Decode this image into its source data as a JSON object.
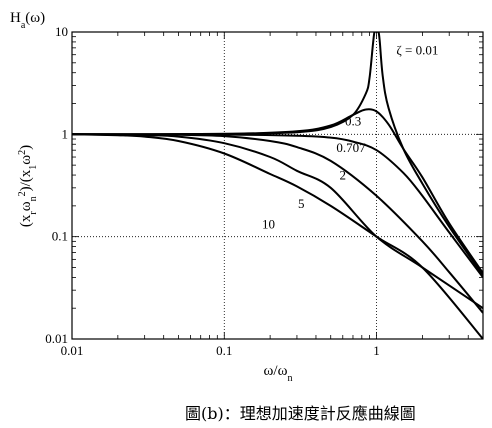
{
  "chart_data": {
    "type": "line",
    "title": "Ha(ω)",
    "xlabel": "ω/ωn",
    "ylabel": "(xrωn2)/(x1ω2)",
    "xscale": "log",
    "yscale": "log",
    "xlim": [
      0.01,
      5
    ],
    "ylim": [
      0.01,
      10
    ],
    "x_ticks": [
      "0.01",
      "0.1",
      "1"
    ],
    "y_ticks": [
      "0.01",
      "0.1",
      "1",
      "10"
    ],
    "grid": "dotted at decades",
    "series": [
      {
        "name": "ζ = 0.01",
        "x": [
          0.01,
          0.1,
          0.3,
          0.5,
          0.7,
          0.85,
          0.9,
          0.95,
          0.97,
          1.0,
          1.03,
          1.05,
          1.1,
          1.2,
          1.5,
          2,
          3,
          5
        ],
        "y": [
          1.0,
          1.01,
          1.05,
          1.18,
          1.55,
          2.5,
          3.6,
          8,
          10,
          10,
          10,
          8,
          3.6,
          1.8,
          0.72,
          0.33,
          0.125,
          0.042
        ]
      },
      {
        "name": "0.3",
        "x": [
          0.01,
          0.1,
          0.3,
          0.5,
          0.7,
          0.85,
          1.0,
          1.2,
          1.5,
          2,
          3,
          5
        ],
        "y": [
          1.0,
          1.01,
          1.07,
          1.22,
          1.55,
          1.75,
          1.67,
          1.25,
          0.72,
          0.38,
          0.135,
          0.044
        ]
      },
      {
        "name": "0.707",
        "x": [
          0.01,
          0.1,
          0.3,
          0.5,
          0.7,
          1.0,
          1.5,
          2,
          3,
          5
        ],
        "y": [
          1.0,
          0.995,
          0.97,
          0.93,
          0.85,
          0.7,
          0.42,
          0.25,
          0.11,
          0.04
        ]
      },
      {
        "name": "2",
        "x": [
          0.01,
          0.05,
          0.1,
          0.2,
          0.3,
          0.5,
          1.0,
          2,
          3,
          5
        ],
        "y": [
          1.0,
          0.99,
          0.96,
          0.86,
          0.75,
          0.55,
          0.25,
          0.09,
          0.045,
          0.018
        ]
      },
      {
        "name": "5",
        "x": [
          0.01,
          0.03,
          0.05,
          0.1,
          0.2,
          0.3,
          0.5,
          1.0,
          2,
          5
        ],
        "y": [
          1.0,
          0.98,
          0.95,
          0.82,
          0.6,
          0.44,
          0.3,
          0.1,
          0.05,
          0.02
        ]
      },
      {
        "name": "10",
        "x": [
          0.01,
          0.02,
          0.03,
          0.05,
          0.1,
          0.2,
          0.3,
          0.5,
          1.0,
          2,
          5
        ],
        "y": [
          1.0,
          0.98,
          0.95,
          0.86,
          0.65,
          0.41,
          0.31,
          0.2,
          0.1,
          0.05,
          0.01
        ]
      }
    ],
    "legend": "labels placed next to curves"
  },
  "caption": "圖(b)：理想加速度計反應曲線圖"
}
